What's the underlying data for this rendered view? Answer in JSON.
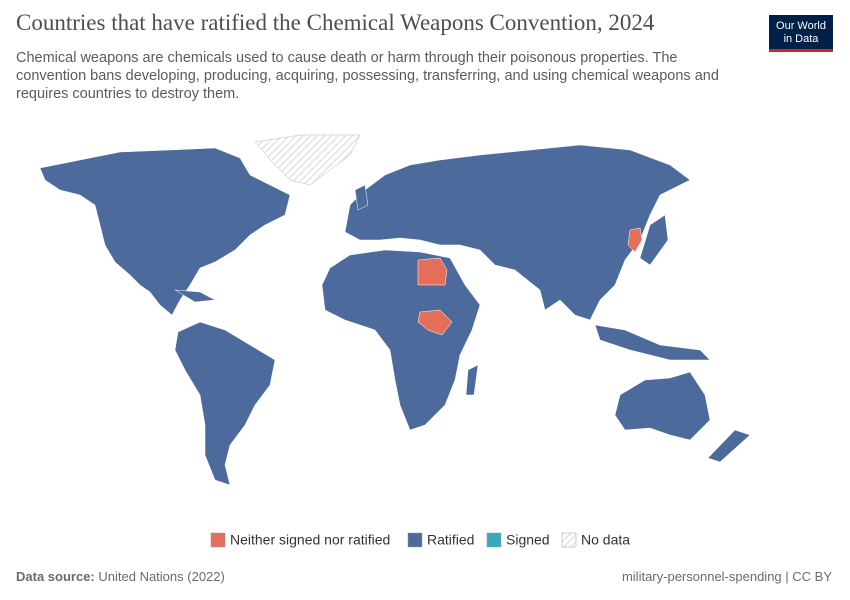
{
  "header": {
    "title": "Countries that have ratified the Chemical Weapons Convention, 2024",
    "subtitle": [
      "Chemical weapons are chemicals used to cause death or harm through their poisonous properties. The",
      "convention bans developing, producing, acquiring, possessing, transferring, and using chemical weapons and",
      "requires countries to destroy them."
    ],
    "logo": [
      "Our World",
      "in Data"
    ]
  },
  "legend": [
    {
      "label": "Neither signed nor ratified",
      "color": "#e56e5a"
    },
    {
      "label": "Ratified",
      "color": "#4c6a9c"
    },
    {
      "label": "Signed",
      "color": "#38aaba"
    },
    {
      "label": "No data",
      "color": "#ffffff"
    }
  ],
  "footer": {
    "source_label": "Data source:",
    "source": "United Nations (2022)",
    "right": "military-personnel-spending | CC BY"
  }
}
